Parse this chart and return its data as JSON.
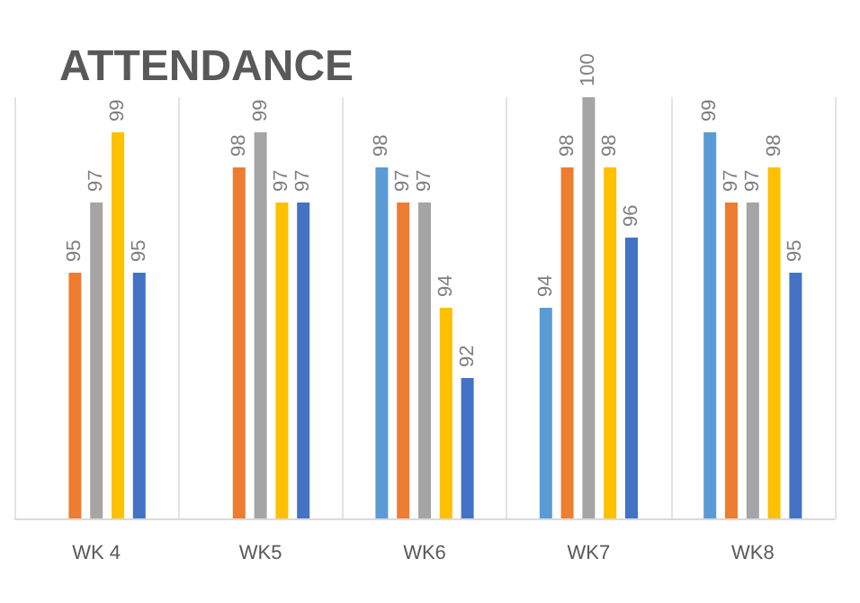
{
  "chart_data": {
    "type": "bar",
    "title": "ATTENDANCE",
    "categories": [
      "WK 4",
      "WK5",
      "WK6",
      "WK7",
      "WK8"
    ],
    "series": [
      {
        "color": "#5b9bd5",
        "values": [
          null,
          null,
          98,
          94,
          99
        ]
      },
      {
        "color": "#ed7d31",
        "values": [
          95,
          98,
          97,
          98,
          97
        ]
      },
      {
        "color": "#a5a5a5",
        "values": [
          97,
          99,
          97,
          100,
          97
        ]
      },
      {
        "color": "#ffc000",
        "values": [
          99,
          97,
          94,
          98,
          98
        ]
      },
      {
        "color": "#4472c4",
        "values": [
          95,
          97,
          92,
          96,
          95
        ]
      }
    ],
    "ylim": [
      88,
      100
    ],
    "tick_labels": "x",
    "grid": "x",
    "data_labels": true
  }
}
